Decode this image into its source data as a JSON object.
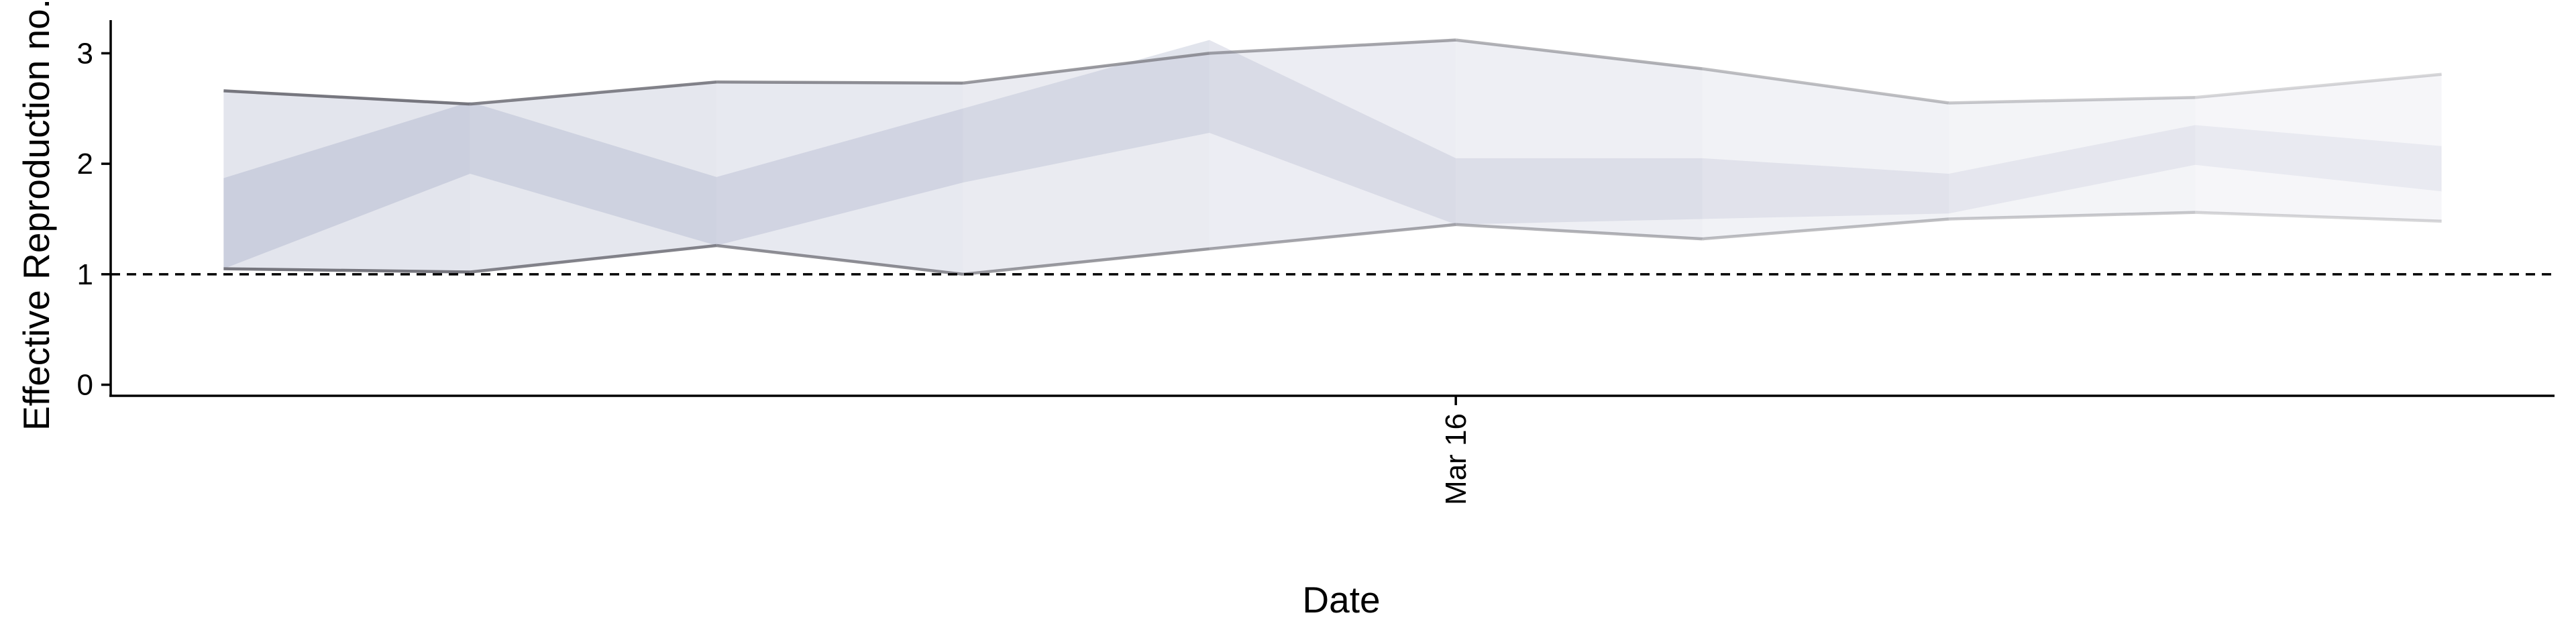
{
  "chart_data": {
    "type": "area",
    "title": "",
    "xlabel": "Date",
    "ylabel": "Effective Reproduction no.",
    "x": [
      "2020-03-11",
      "2020-03-12",
      "2020-03-13",
      "2020-03-14",
      "2020-03-15",
      "2020-03-16",
      "2020-03-17",
      "2020-03-18",
      "2020-03-19",
      "2020-03-20"
    ],
    "x_tick_labels": [
      {
        "x": "2020-03-16",
        "label": "Mar 16"
      }
    ],
    "y_ticks": [
      0,
      1,
      2,
      3
    ],
    "ylim": [
      -0.1,
      3.3
    ],
    "xlim": [
      "2020-03-10T13:00",
      "2020-03-20T11:00"
    ],
    "reference_line": {
      "y": 1,
      "style": "dashed"
    },
    "series": [
      {
        "lower_90": [
          1.05,
          1.02,
          1.26,
          1.0,
          1.23,
          1.45,
          1.32,
          1.5,
          1.56,
          1.48
        ],
        "upper_90": [
          2.66,
          2.54,
          2.74,
          2.73,
          3.0,
          3.12,
          2.86,
          2.55,
          2.6,
          2.81
        ],
        "lower_50": [
          1.05,
          1.91,
          1.26,
          1.83,
          2.28,
          1.45,
          1.5,
          1.55,
          1.99,
          1.75
        ],
        "upper_50": [
          1.87,
          2.56,
          1.88,
          2.5,
          3.12,
          2.05,
          2.05,
          1.91,
          2.35,
          2.16
        ],
        "fill_color": "#b8bdd2",
        "edge_color": "#707078"
      }
    ],
    "grid": false,
    "legend": "none"
  }
}
